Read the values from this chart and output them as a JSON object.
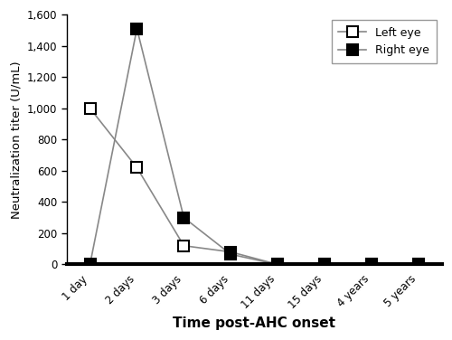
{
  "x_labels": [
    "1 day",
    "2 days",
    "3 days",
    "6 days",
    "11 days",
    "15 days",
    "4 years",
    "5 years"
  ],
  "left_eye": [
    1000,
    620,
    120,
    80,
    0,
    0,
    0,
    0
  ],
  "right_eye": [
    0,
    1510,
    300,
    65,
    0,
    0,
    0,
    0
  ],
  "ylabel": "Neutralization titer (U/mL)",
  "xlabel": "Time post-AHC onset",
  "ylim": [
    0,
    1600
  ],
  "yticks": [
    0,
    200,
    400,
    600,
    800,
    1000,
    1200,
    1400,
    1600
  ],
  "ytick_labels": [
    "0",
    "200",
    "400",
    "600",
    "800",
    "1,000",
    "1,200",
    "1,400",
    "1,600"
  ],
  "legend_left": "Left eye",
  "legend_right": "Right eye",
  "line_color": "#888888",
  "bg_color": "#ffffff"
}
